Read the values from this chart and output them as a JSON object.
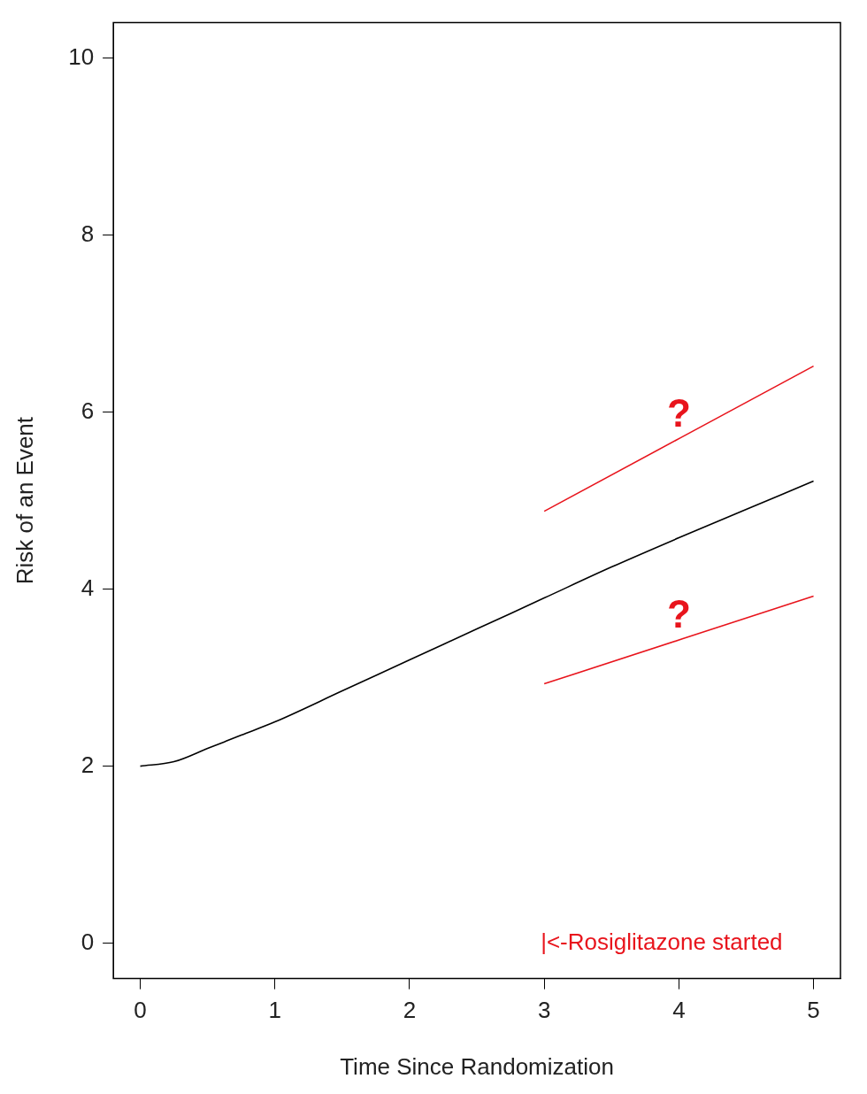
{
  "chart_data": {
    "type": "line",
    "xlabel": "Time Since Randomization",
    "ylabel": "Risk of an Event",
    "xlim": [
      -0.2,
      5.2
    ],
    "xticks": [
      0,
      1,
      2,
      3,
      4,
      5
    ],
    "ylim": [
      -0.4,
      10.4
    ],
    "yticks": [
      0,
      2,
      4,
      6,
      8,
      10
    ],
    "grid": false,
    "legend": false,
    "marker": "none",
    "line_style": "solid",
    "series": [
      {
        "color": "#000000",
        "x": [
          0,
          0.25,
          0.5,
          0.75,
          1,
          1.5,
          2,
          2.5,
          3,
          3.5,
          4,
          4.5,
          5
        ],
        "values": [
          2.0,
          2.05,
          2.2,
          2.35,
          2.5,
          2.85,
          3.2,
          3.55,
          3.9,
          4.25,
          4.58,
          4.9,
          5.22
        ]
      },
      {
        "color": "#e8141c",
        "x": [
          3,
          5
        ],
        "values": [
          4.88,
          6.52
        ]
      },
      {
        "color": "#e8141c",
        "x": [
          3,
          5
        ],
        "values": [
          2.93,
          3.92
        ]
      }
    ],
    "annotations": [
      "?",
      "?",
      "|<-Rosiglitazone started"
    ]
  }
}
